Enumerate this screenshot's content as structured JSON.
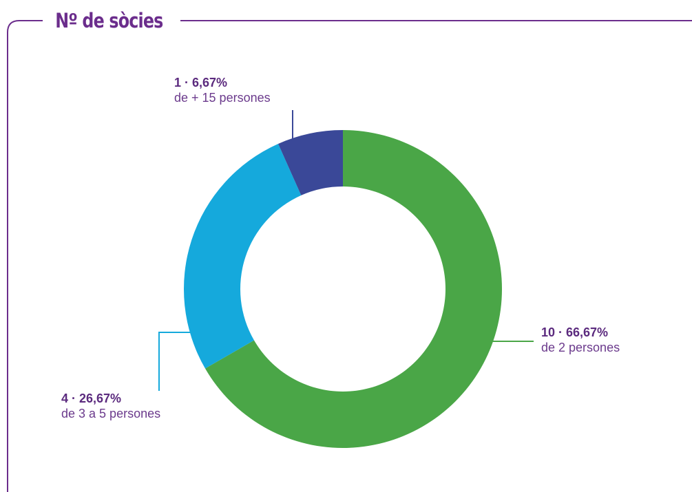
{
  "title": "Nº de sòcies",
  "colors": {
    "frame": "#6b2d8c",
    "accent_text": "#5b2a7e"
  },
  "chart_data": {
    "type": "pie",
    "donut": true,
    "start": "top",
    "direction": "clockwise",
    "slices": [
      {
        "count": 10,
        "percent": 66.67,
        "value_label": "10 · 66,67%",
        "category": "de 2 persones",
        "color": "#4aa647"
      },
      {
        "count": 4,
        "percent": 26.67,
        "value_label": "4 · 26,67%",
        "category": "de 3 a 5 persones",
        "color": "#15a9dc"
      },
      {
        "count": 1,
        "percent": 6.67,
        "value_label": "1 · 6,67%",
        "category": "de + 15 persones",
        "color": "#3a4898"
      }
    ]
  }
}
